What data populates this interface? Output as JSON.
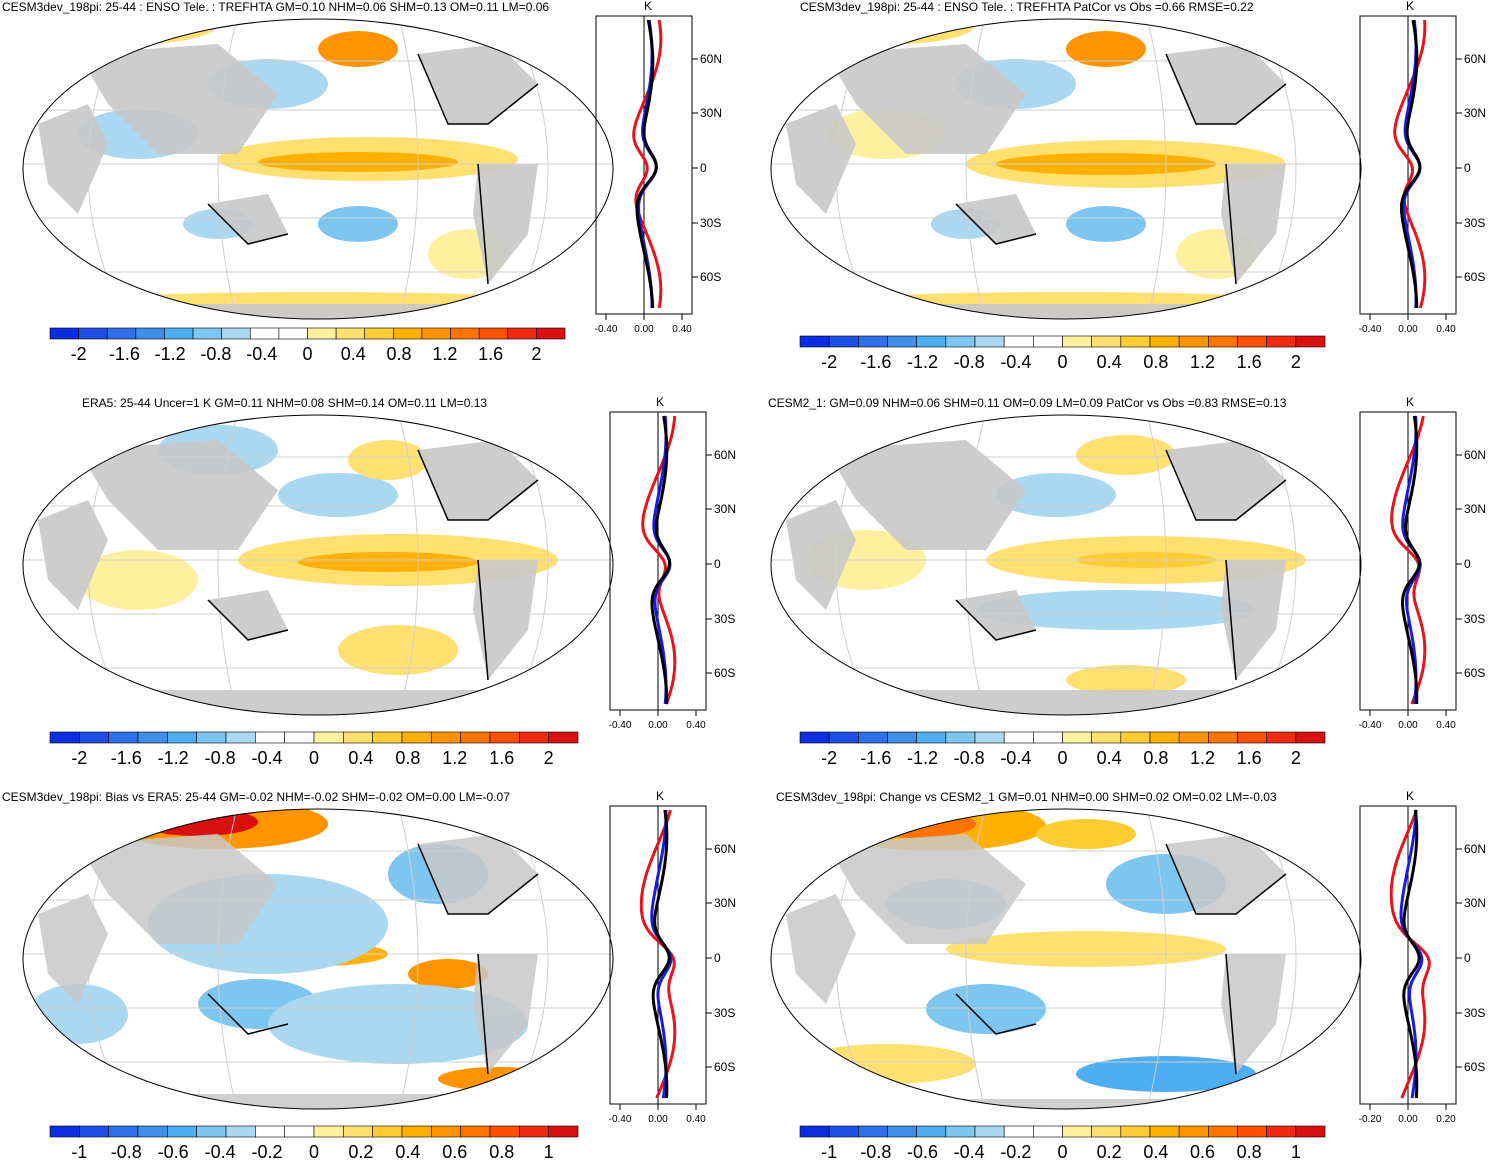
{
  "colors": {
    "land": "#c8c8c8",
    "grid": "#cfcfcf",
    "profile_model": "#e8141a",
    "profile_obs": "#1a1ae6",
    "profile_ref": "#000000"
  },
  "colorbar": {
    "colors": [
      "#0a2ee0",
      "#1e50e8",
      "#2f6fe8",
      "#3f8ee8",
      "#4eaef0",
      "#7cc6f0",
      "#a9d8f0",
      "#ffffff",
      "#ffffff",
      "#fff0a0",
      "#ffe070",
      "#ffcc33",
      "#ffb000",
      "#ff9400",
      "#ff7400",
      "#ff5000",
      "#f02a10",
      "#d81010"
    ],
    "labels_a": [
      "-2",
      "-1.6",
      "-1.2",
      "-0.8",
      "-0.4",
      "0",
      "0.4",
      "0.8",
      "1.2",
      "1.6",
      "2"
    ],
    "labels_b": [
      "-1",
      "-0.8",
      "-0.6",
      "-0.4",
      "-0.2",
      "0",
      "0.2",
      "0.4",
      "0.6",
      "0.8",
      "1"
    ]
  },
  "profile_axis": {
    "unit": "K",
    "lat_labels": [
      "60N",
      "30N",
      "0",
      "30S",
      "60S"
    ],
    "x_labels_a": [
      "-0.40",
      "0.00",
      "0.40"
    ],
    "x_labels_b": [
      "-0.20",
      "0.00",
      "0.20"
    ]
  },
  "panels": [
    {
      "id": "p1",
      "title": "CESM3dev_198pi: 25-44 : ENSO Tele. : TREFHTA GM=0.10 NHM=0.06 SHM=0.13 OM=0.11 LM=0.06"
    },
    {
      "id": "p2",
      "title": "CESM3dev_198pi: 25-44 : ENSO Tele. : TREFHTA PatCor vs Obs =0.66 RMSE=0.22"
    },
    {
      "id": "p3",
      "title": "ERA5: 25-44 Uncer=1 K GM=0.11 NHM=0.08 SHM=0.14 OM=0.11 LM=0.13"
    },
    {
      "id": "p4",
      "title": "CESM2_1: GM=0.09 NHM=0.06 SHM=0.11 OM=0.09 LM=0.09 PatCor vs Obs =0.83 RMSE=0.13"
    },
    {
      "id": "p5",
      "title": "CESM3dev_198pi: Bias vs ERA5: 25-44 GM=-0.02 NHM=-0.02 SHM=-0.02 OM=0.00 LM=-0.07"
    },
    {
      "id": "p6",
      "title": "CESM3dev_198pi: Change vs CESM2_1 GM=0.01 NHM=0.00 SHM=0.02 OM=0.02 LM=-0.03"
    }
  ]
}
